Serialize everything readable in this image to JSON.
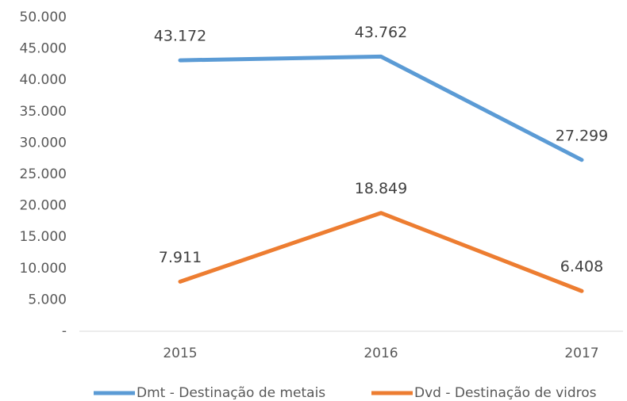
{
  "chart_data": {
    "type": "line",
    "categories": [
      "2015",
      "2016",
      "2017"
    ],
    "series": [
      {
        "name": "Dmt - Destinação de metais",
        "color": "#5b9bd5",
        "values": [
          43172,
          43762,
          27299
        ],
        "value_labels": [
          "43.172",
          "43.762",
          "27.299"
        ]
      },
      {
        "name": "Dvd - Destinação de vidros",
        "color": "#ed7d31",
        "values": [
          7911,
          18849,
          6408
        ],
        "value_labels": [
          "7.911",
          "18.849",
          "6.408"
        ]
      }
    ],
    "ylim": [
      0,
      50000
    ],
    "yticks": [
      {
        "value": 0,
        "label": "-"
      },
      {
        "value": 5000,
        "label": "5.000"
      },
      {
        "value": 10000,
        "label": "10.000"
      },
      {
        "value": 15000,
        "label": "15.000"
      },
      {
        "value": 20000,
        "label": "20.000"
      },
      {
        "value": 25000,
        "label": "25.000"
      },
      {
        "value": 30000,
        "label": "30.000"
      },
      {
        "value": 35000,
        "label": "35.000"
      },
      {
        "value": 40000,
        "label": "40.000"
      },
      {
        "value": 45000,
        "label": "45.000"
      },
      {
        "value": 50000,
        "label": "50.000"
      }
    ],
    "grid": false,
    "legend": "bottom"
  }
}
